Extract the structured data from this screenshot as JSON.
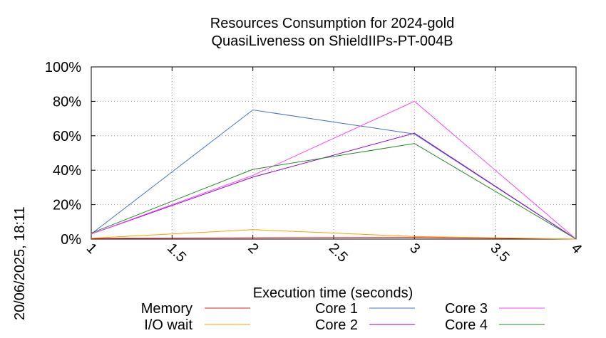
{
  "chart_data": {
    "type": "line",
    "title": [
      "Resources Consumption for 2024-gold",
      "QuasiLiveness on ShieldIIPs-PT-004B"
    ],
    "xlabel": "Execution time (seconds)",
    "ylabel": "",
    "side_label": "20/06/2025, 18:11",
    "xlim": [
      1,
      4
    ],
    "ylim": [
      0,
      100
    ],
    "x_ticks": [
      "1",
      "1.5",
      "2",
      "2.5",
      "3",
      "3.5",
      "4"
    ],
    "y_ticks": [
      "0%",
      "20%",
      "40%",
      "60%",
      "80%",
      "100%"
    ],
    "grid": true,
    "legend_position": "bottom",
    "series": [
      {
        "name": "Memory",
        "color": "#e41a1c",
        "x": [
          1,
          2,
          3,
          4
        ],
        "y": [
          0.3,
          0.8,
          1.0,
          0
        ]
      },
      {
        "name": "I/O wait",
        "color": "#ff9f00",
        "x": [
          1,
          2,
          3,
          4
        ],
        "y": [
          0.5,
          5.5,
          1.5,
          0
        ]
      },
      {
        "name": "Core 1",
        "color": "#4472c4",
        "x": [
          1,
          2,
          3,
          4
        ],
        "y": [
          3,
          75,
          61,
          0
        ]
      },
      {
        "name": "Core 2",
        "color": "#9400d3",
        "x": [
          1,
          2,
          3,
          4
        ],
        "y": [
          3,
          36,
          61.5,
          0
        ]
      },
      {
        "name": "Core 3",
        "color": "#ff44ff",
        "x": [
          1,
          2,
          3,
          4
        ],
        "y": [
          3,
          37,
          80,
          0
        ]
      },
      {
        "name": "Core 4",
        "color": "#228b22",
        "x": [
          1,
          2,
          3,
          4
        ],
        "y": [
          3.5,
          40.5,
          55.5,
          0
        ]
      }
    ]
  }
}
